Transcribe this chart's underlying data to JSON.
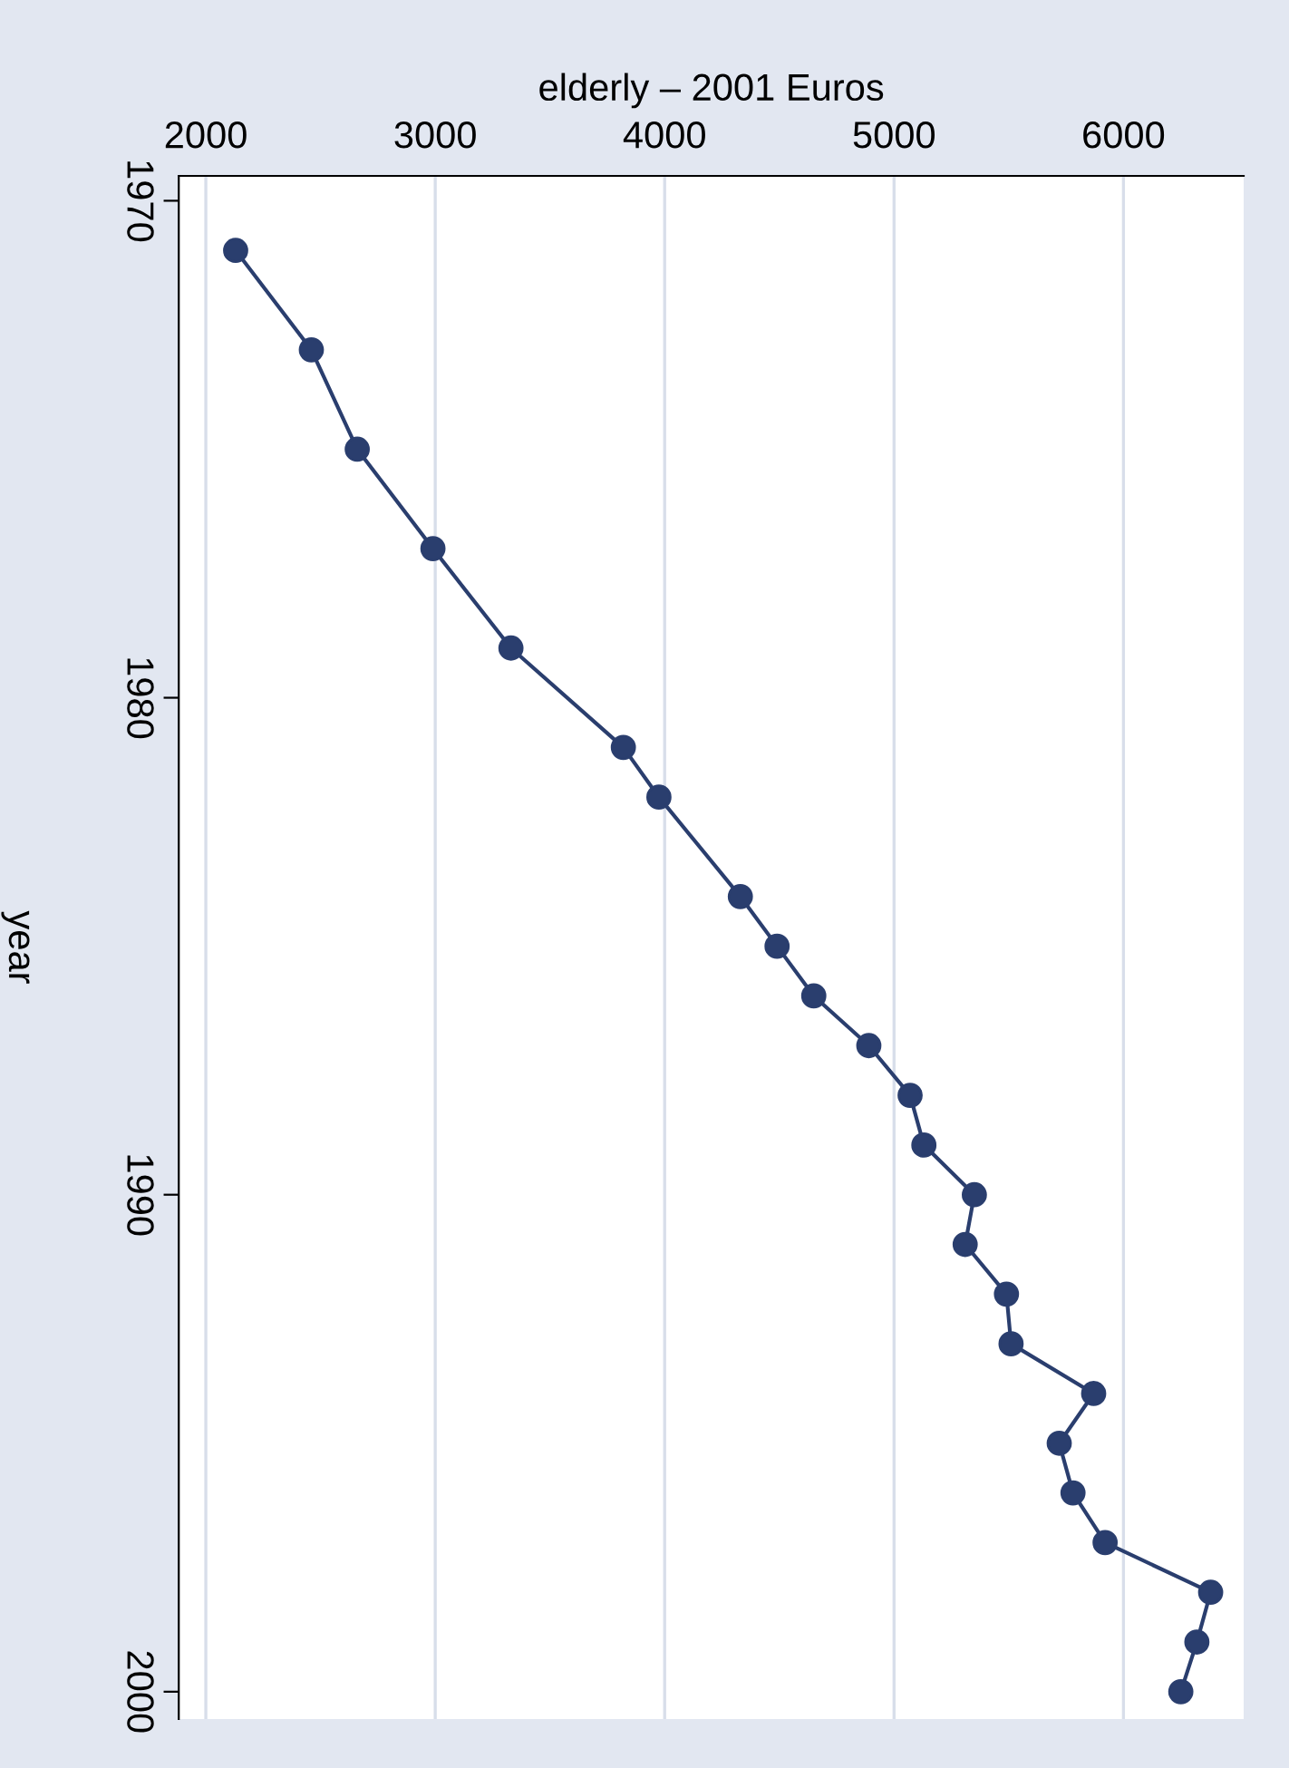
{
  "chart_data": {
    "type": "line",
    "orientation": "horizontal",
    "xlabel": "elderly – 2001 Euros",
    "ylabel": "year",
    "x": [
      1971,
      1973,
      1975,
      1977,
      1979,
      1981,
      1982,
      1984,
      1985,
      1986,
      1987,
      1988,
      1989,
      1990,
      1991,
      1992,
      1993,
      1994,
      1995,
      1996,
      1997,
      1998,
      1999,
      2000
    ],
    "series": [
      {
        "color": "#2a3e6e",
        "values": [
          2130,
          2460,
          2660,
          2990,
          3330,
          3820,
          3975,
          4330,
          4490,
          4650,
          4890,
          5070,
          5130,
          5350,
          5310,
          5490,
          5510,
          5870,
          5720,
          5780,
          5920,
          6380,
          6320,
          6250
        ]
      }
    ],
    "xlim": [
      1882,
      6524
    ],
    "xticks": [
      2000,
      3000,
      4000,
      5000,
      6000
    ],
    "ylim": [
      2000.55,
      1969.5
    ],
    "yticks": [
      1970,
      1980,
      1990,
      2000
    ],
    "grid": "x",
    "marker": "circle",
    "line_style": "solid",
    "legend": false
  }
}
